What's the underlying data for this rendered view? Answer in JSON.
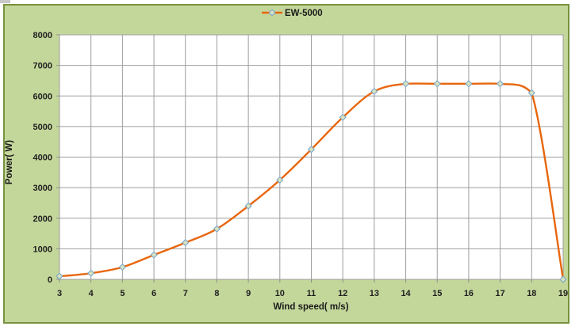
{
  "legend": {
    "label": "EW-5000"
  },
  "colors": {
    "background": "#C4D79B",
    "frame_border": "#77933C",
    "plot_background": "#FFFFFF",
    "gridline": "#9E9E9E",
    "tick": "#8C8C8C",
    "series_line": "#E8660D",
    "marker_fill": "#D8E4C0",
    "marker_stroke": "#7EA6C8",
    "text": "#1f1f1f"
  },
  "chart_data": {
    "type": "line",
    "title": "",
    "categories": [
      3,
      4,
      5,
      6,
      7,
      8,
      9,
      10,
      11,
      12,
      13,
      14,
      15,
      16,
      17,
      18,
      19
    ],
    "series": [
      {
        "name": "EW-5000",
        "values": [
          100,
          200,
          400,
          800,
          1200,
          1650,
          2400,
          3250,
          4250,
          5300,
          6150,
          6400,
          6400,
          6400,
          6400,
          6100,
          0
        ]
      }
    ],
    "xlabel": "Wind speed( m/s)",
    "ylabel": "Power( W)",
    "xlim": [
      3,
      19
    ],
    "ylim": [
      0,
      8000
    ],
    "y_tick_step": 1000,
    "grid": true,
    "line_smooth": true,
    "marker": "diamond",
    "legend_position": "top-center"
  }
}
